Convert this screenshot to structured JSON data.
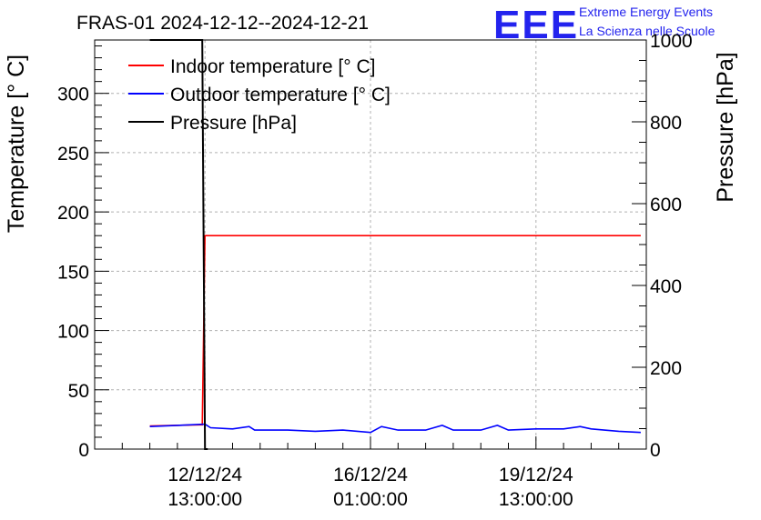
{
  "chart_data": {
    "type": "line",
    "title": "FRAS-01 2024-12-12--2024-12-21",
    "ylabel": "Temperature [° C]",
    "y2label": "Pressure [hPa]",
    "ylim": [
      0,
      345
    ],
    "y2lim": [
      0,
      1000
    ],
    "yticks": [
      "0",
      "50",
      "100",
      "150",
      "200",
      "250",
      "300"
    ],
    "y2ticks": [
      "0",
      "200",
      "400",
      "600",
      "800",
      "1000"
    ],
    "xlim": [
      0,
      10
    ],
    "xticks": [
      {
        "x": 2,
        "line1": "12/12/24",
        "line2": "13:00:00"
      },
      {
        "x": 5,
        "line1": "16/12/24",
        "line2": "01:00:00"
      },
      {
        "x": 8,
        "line1": "19/12/24",
        "line2": "13:00:00"
      }
    ],
    "series": [
      {
        "name": "Indoor temperature [° C]",
        "color": "#ff0000",
        "axis": "left",
        "points": [
          [
            1.0,
            19.5
          ],
          [
            1.9,
            20.5
          ],
          [
            1.95,
            20.5
          ],
          [
            2.0,
            180
          ],
          [
            9.9,
            180
          ]
        ]
      },
      {
        "name": "Outdoor temperature [° C]",
        "color": "#0000ff",
        "axis": "left",
        "points": [
          [
            1.0,
            19
          ],
          [
            1.5,
            20
          ],
          [
            2.0,
            21
          ],
          [
            2.1,
            18
          ],
          [
            2.5,
            17
          ],
          [
            2.8,
            19
          ],
          [
            2.9,
            16
          ],
          [
            3.5,
            16
          ],
          [
            4.0,
            15
          ],
          [
            4.5,
            16
          ],
          [
            5.0,
            14
          ],
          [
            5.2,
            19
          ],
          [
            5.5,
            16
          ],
          [
            6.0,
            16
          ],
          [
            6.3,
            20
          ],
          [
            6.5,
            16
          ],
          [
            7.0,
            16
          ],
          [
            7.3,
            20
          ],
          [
            7.5,
            16
          ],
          [
            8.0,
            17
          ],
          [
            8.5,
            17
          ],
          [
            8.8,
            19
          ],
          [
            9.0,
            17
          ],
          [
            9.5,
            15
          ],
          [
            9.9,
            14
          ]
        ]
      },
      {
        "name": "Pressure [hPa]",
        "color": "#000000",
        "axis": "right",
        "points": [
          [
            1.0,
            1000
          ],
          [
            1.95,
            1000
          ],
          [
            2.0,
            0
          ],
          [
            2.05,
            0
          ]
        ]
      }
    ],
    "legend_position": "top-left",
    "grid": true
  },
  "logo": {
    "text": "EEE",
    "line1": "Extreme Energy Events",
    "line2": "La Scienza nelle Scuole"
  }
}
